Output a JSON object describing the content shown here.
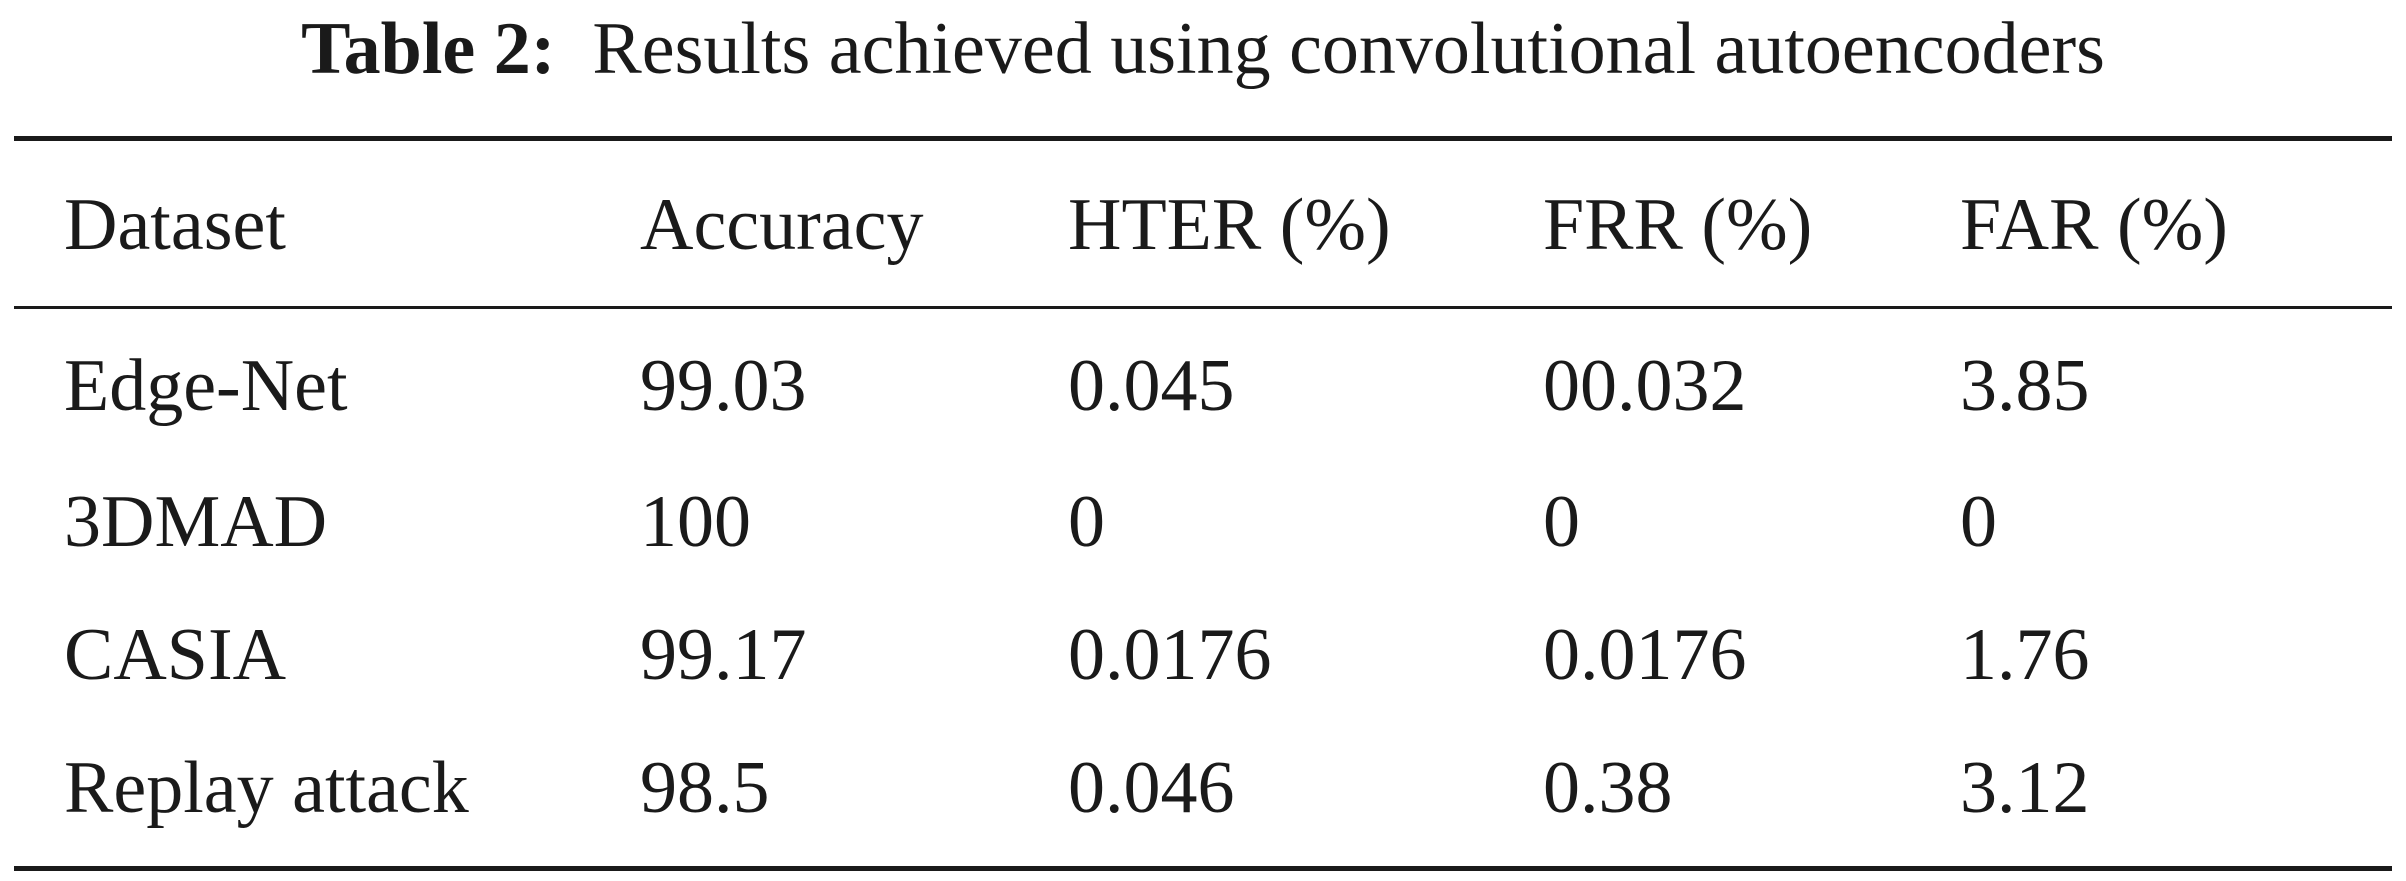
{
  "caption": {
    "label": "Table 2:",
    "text": "Results achieved using convolutional autoencoders"
  },
  "table": {
    "headers": [
      "Dataset",
      "Accuracy",
      "HTER (%)",
      "FRR (%)",
      "FAR (%)"
    ],
    "rows": [
      [
        "Edge-Net",
        "99.03",
        "0.045",
        "00.032",
        "3.85"
      ],
      [
        "3DMAD",
        "100",
        "0",
        "0",
        "0"
      ],
      [
        "CASIA",
        "99.17",
        "0.0176",
        "0.0176",
        "1.76"
      ],
      [
        "Replay attack",
        "98.5",
        "0.046",
        "0.38",
        "3.12"
      ]
    ]
  }
}
